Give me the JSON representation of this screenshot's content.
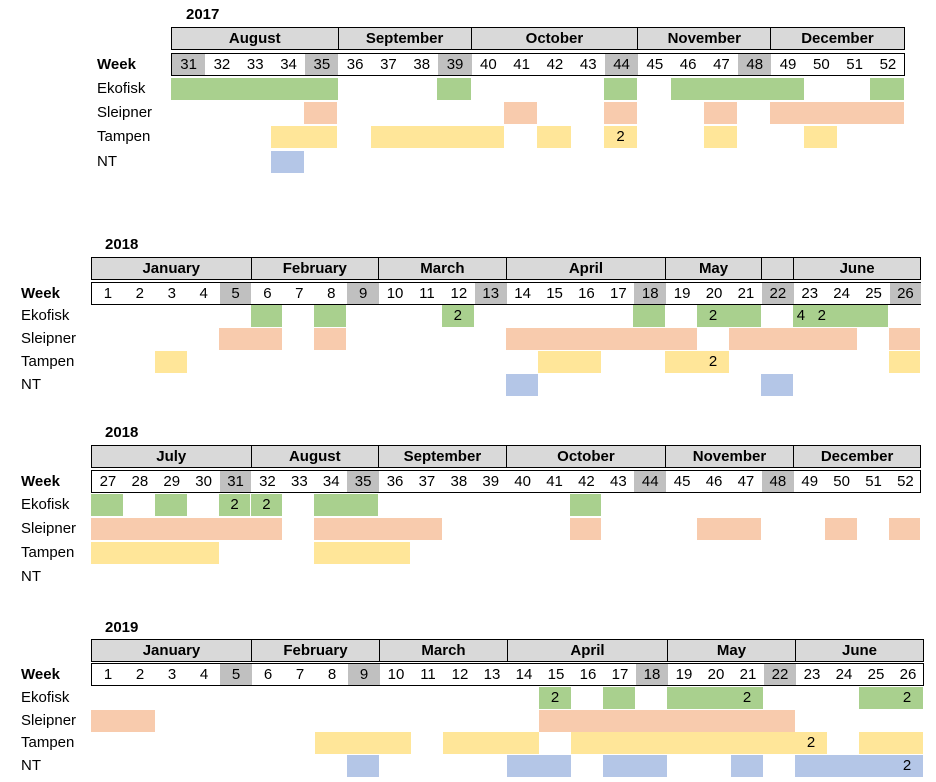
{
  "row_labels": {
    "week": "Week",
    "ekofisk": "Ekofisk",
    "sleipner": "Sleipner",
    "tampen": "Tampen",
    "nt": "NT"
  },
  "colors": {
    "ekofisk": "#a9d08e",
    "sleipner": "#f8cbad",
    "tampen": "#ffe699",
    "nt": "#b4c6e7"
  },
  "sections": [
    {
      "year": "2017",
      "months": [
        {
          "name": "August",
          "span": 5
        },
        {
          "name": "September",
          "span": 4
        },
        {
          "name": "October",
          "span": 5
        },
        {
          "name": "November",
          "span": 4
        },
        {
          "name": "December",
          "span": 4
        }
      ],
      "weeks": [
        "31",
        "32",
        "33",
        "34",
        "35",
        "36",
        "37",
        "38",
        "39",
        "40",
        "41",
        "42",
        "43",
        "44",
        "45",
        "46",
        "47",
        "48",
        "49",
        "50",
        "51",
        "52"
      ],
      "shaded": [
        "31",
        "35",
        "39",
        "44",
        "48"
      ],
      "rows": {
        "ekofisk": [
          {
            "from": 0,
            "to": 4
          },
          {
            "from": 8,
            "to": 8
          },
          {
            "from": 13,
            "to": 13
          },
          {
            "from": 15,
            "to": 18
          },
          {
            "from": 21,
            "to": 21
          }
        ],
        "sleipner": [
          {
            "from": 4,
            "to": 4
          },
          {
            "from": 10,
            "to": 10
          },
          {
            "from": 13,
            "to": 13
          },
          {
            "from": 16,
            "to": 16
          },
          {
            "from": 18,
            "to": 21
          }
        ],
        "tampen": [
          {
            "from": 3,
            "to": 4
          },
          {
            "from": 6,
            "to": 9
          },
          {
            "from": 11,
            "to": 11
          },
          {
            "from": 13,
            "to": 13,
            "label": "2"
          },
          {
            "from": 16,
            "to": 16
          },
          {
            "from": 19,
            "to": 19
          }
        ],
        "nt": [
          {
            "from": 3,
            "to": 3
          }
        ]
      }
    },
    {
      "year": "2018",
      "months": [
        {
          "name": "January",
          "span": 5
        },
        {
          "name": "February",
          "span": 4
        },
        {
          "name": "March",
          "span": 4
        },
        {
          "name": "April",
          "span": 5
        },
        {
          "name": "May",
          "span": 3
        },
        {
          "name": "",
          "span": 1
        },
        {
          "name": "June",
          "span": 4
        }
      ],
      "weeks": [
        "1",
        "2",
        "3",
        "4",
        "5",
        "6",
        "7",
        "8",
        "9",
        "10",
        "11",
        "12",
        "13",
        "14",
        "15",
        "16",
        "17",
        "18",
        "19",
        "20",
        "21",
        "22",
        "23",
        "24",
        "25",
        "26"
      ],
      "shaded": [
        "5",
        "9",
        "13",
        "18",
        "22",
        "26"
      ],
      "rows": {
        "ekofisk": [
          {
            "from": 5,
            "to": 5
          },
          {
            "from": 7,
            "to": 7
          },
          {
            "from": 11,
            "to": 11,
            "label": "2"
          },
          {
            "from": 17,
            "to": 17
          },
          {
            "from": 19,
            "to": 19,
            "label": "2"
          },
          {
            "from": 20,
            "to": 20
          },
          {
            "from": 22,
            "to": 24,
            "label": "4   2"
          }
        ],
        "sleipner": [
          {
            "from": 4,
            "to": 5
          },
          {
            "from": 7,
            "to": 7
          },
          {
            "from": 13,
            "to": 18
          },
          {
            "from": 20,
            "to": 20
          },
          {
            "from": 21,
            "to": 23
          },
          {
            "from": 25,
            "to": 25
          }
        ],
        "tampen": [
          {
            "from": 2,
            "to": 2
          },
          {
            "from": 14,
            "to": 15
          },
          {
            "from": 18,
            "to": 19,
            "label": "2"
          },
          {
            "from": 25,
            "to": 25
          }
        ],
        "nt": [
          {
            "from": 13,
            "to": 13
          },
          {
            "from": 21,
            "to": 21
          }
        ]
      }
    },
    {
      "year": "2018",
      "months": [
        {
          "name": "July",
          "span": 5
        },
        {
          "name": "August",
          "span": 4
        },
        {
          "name": "September",
          "span": 4
        },
        {
          "name": "October",
          "span": 5
        },
        {
          "name": "November",
          "span": 4
        },
        {
          "name": "December",
          "span": 4
        }
      ],
      "weeks": [
        "27",
        "28",
        "29",
        "30",
        "31",
        "32",
        "33",
        "34",
        "35",
        "36",
        "37",
        "38",
        "39",
        "40",
        "41",
        "42",
        "43",
        "44",
        "45",
        "46",
        "47",
        "48",
        "49",
        "50",
        "51",
        "52"
      ],
      "shaded": [
        "31",
        "35",
        "44",
        "48"
      ],
      "rows": {
        "ekofisk": [
          {
            "from": 0,
            "to": 0
          },
          {
            "from": 2,
            "to": 2
          },
          {
            "from": 4,
            "to": 4,
            "label": "2"
          },
          {
            "from": 5,
            "to": 5,
            "label": "2"
          },
          {
            "from": 7,
            "to": 8
          },
          {
            "from": 15,
            "to": 15
          }
        ],
        "sleipner": [
          {
            "from": 0,
            "to": 5
          },
          {
            "from": 7,
            "to": 10
          },
          {
            "from": 15,
            "to": 15
          },
          {
            "from": 19,
            "to": 20
          },
          {
            "from": 23,
            "to": 23
          },
          {
            "from": 25,
            "to": 25
          }
        ],
        "tampen": [
          {
            "from": 0,
            "to": 3
          },
          {
            "from": 7,
            "to": 9
          }
        ],
        "nt": []
      }
    },
    {
      "year": "2019",
      "months": [
        {
          "name": "January",
          "span": 5
        },
        {
          "name": "February",
          "span": 4
        },
        {
          "name": "March",
          "span": 4
        },
        {
          "name": "April",
          "span": 5
        },
        {
          "name": "May",
          "span": 4
        },
        {
          "name": "June",
          "span": 4
        }
      ],
      "weeks": [
        "1",
        "2",
        "3",
        "4",
        "5",
        "6",
        "7",
        "8",
        "9",
        "10",
        "11",
        "12",
        "13",
        "14",
        "15",
        "16",
        "17",
        "18",
        "19",
        "20",
        "21",
        "22",
        "23",
        "24",
        "25",
        "26"
      ],
      "shaded": [
        "5",
        "9",
        "18",
        "22"
      ],
      "rows": {
        "ekofisk": [
          {
            "from": 14,
            "to": 14,
            "label": "2"
          },
          {
            "from": 16,
            "to": 16
          },
          {
            "from": 18,
            "to": 20,
            "label": "2"
          },
          {
            "from": 24,
            "to": 25,
            "label": "2"
          }
        ],
        "sleipner": [
          {
            "from": 0,
            "to": 1
          },
          {
            "from": 14,
            "to": 21
          }
        ],
        "tampen": [
          {
            "from": 7,
            "to": 9
          },
          {
            "from": 11,
            "to": 13
          },
          {
            "from": 15,
            "to": 22,
            "label": "2"
          },
          {
            "from": 24,
            "to": 25
          }
        ],
        "nt": [
          {
            "from": 8,
            "to": 8
          },
          {
            "from": 13,
            "to": 14
          },
          {
            "from": 16,
            "to": 17
          },
          {
            "from": 20,
            "to": 20
          },
          {
            "from": 22,
            "to": 25,
            "label": "2"
          }
        ]
      }
    }
  ]
}
